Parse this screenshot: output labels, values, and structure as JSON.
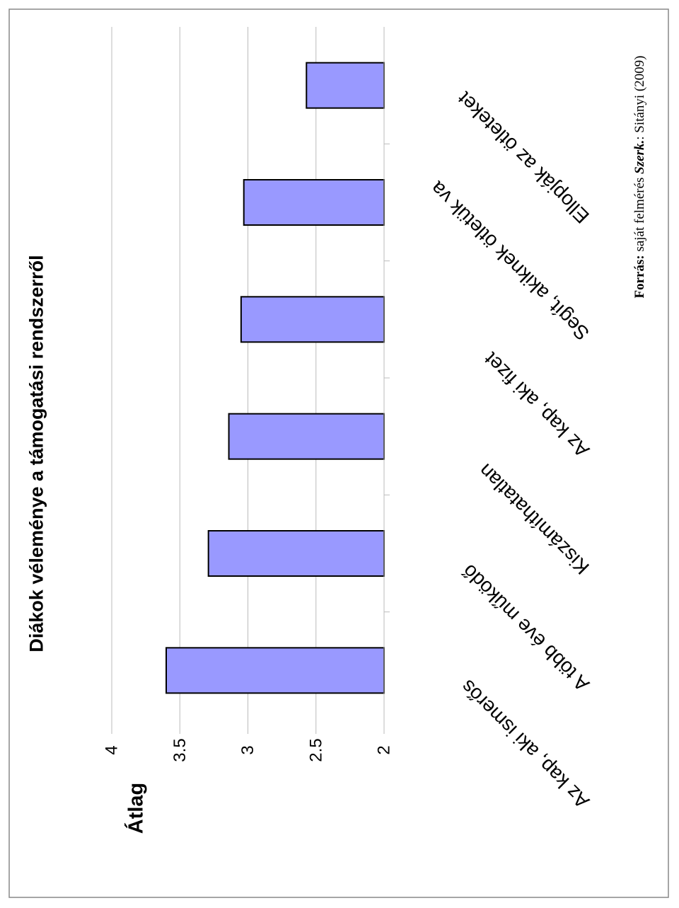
{
  "chart_data": {
    "type": "bar",
    "title": "Diákok véleménye a támogatási rendszerről",
    "ylabel": "Átlag",
    "categories": [
      "Az kap, aki ismerős",
      "A több éve működő",
      "Kiszámíthatatlan",
      "Az kap, aki fizet",
      "Segít, akiknek ötletük va",
      "Ellopják az ötleteket"
    ],
    "values": [
      3.6,
      3.29,
      3.14,
      3.05,
      3.03,
      2.57
    ],
    "ylim": [
      2,
      4
    ],
    "yticks": [
      "2",
      "2.5",
      "3",
      "3.5",
      "4"
    ],
    "grid": true,
    "bar_color": "#9999ff",
    "bar_edge_color": "#000000"
  },
  "source": {
    "label": "Forrás:",
    "text": " saját felmérés ",
    "author_label": "Szerk.",
    "author": ": Sitányi (2009)"
  }
}
